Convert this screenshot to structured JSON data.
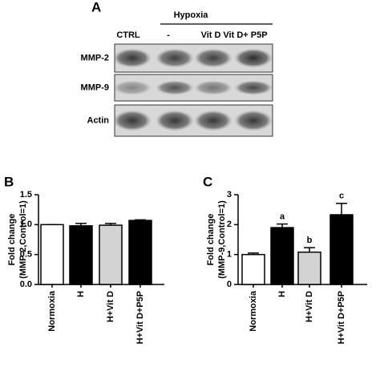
{
  "panel_a": {
    "label": "A",
    "group_label": "Hypoxia",
    "lanes": [
      "CTRL",
      "-",
      "Vit D",
      "Vit D+ P5P"
    ],
    "rows": [
      "MMP-2",
      "MMP-9",
      "Actin"
    ]
  },
  "chart_data": [
    {
      "type": "bar",
      "panel_label": "B",
      "ylabel": [
        "Fold change",
        "(MMP-2,Control=1)"
      ],
      "categories": [
        "Normoxia",
        "H",
        "H+Vit D",
        "H+Vit D+P5P"
      ],
      "values": [
        1.0,
        0.98,
        0.99,
        1.07
      ],
      "errors": [
        0,
        0.04,
        0.03,
        0.01
      ],
      "colors": [
        "#ffffff",
        "#000000",
        "#d3d3d3",
        "#000000"
      ],
      "ylim": [
        0,
        1.5
      ],
      "yticks": [
        {
          "value": 0,
          "label": "0.0"
        },
        0.5,
        {
          "value": 1,
          "label": "1.0"
        },
        1.5
      ]
    },
    {
      "type": "bar",
      "panel_label": "C",
      "ylabel": [
        "Fold change",
        "(MMP-9,Control=1)"
      ],
      "categories": [
        "Normoxia",
        "H",
        "H+Vit D",
        "H+Vit D+P5P"
      ],
      "values": [
        1.0,
        1.9,
        1.08,
        2.33
      ],
      "errors": [
        0.05,
        0.12,
        0.15,
        0.38
      ],
      "annotations": [
        null,
        "a",
        "b",
        "c"
      ],
      "colors": [
        "#ffffff",
        "#000000",
        "#d3d3d3",
        "#000000"
      ],
      "ylim": [
        0,
        3
      ],
      "yticks": [
        0,
        1,
        2,
        3
      ]
    }
  ]
}
